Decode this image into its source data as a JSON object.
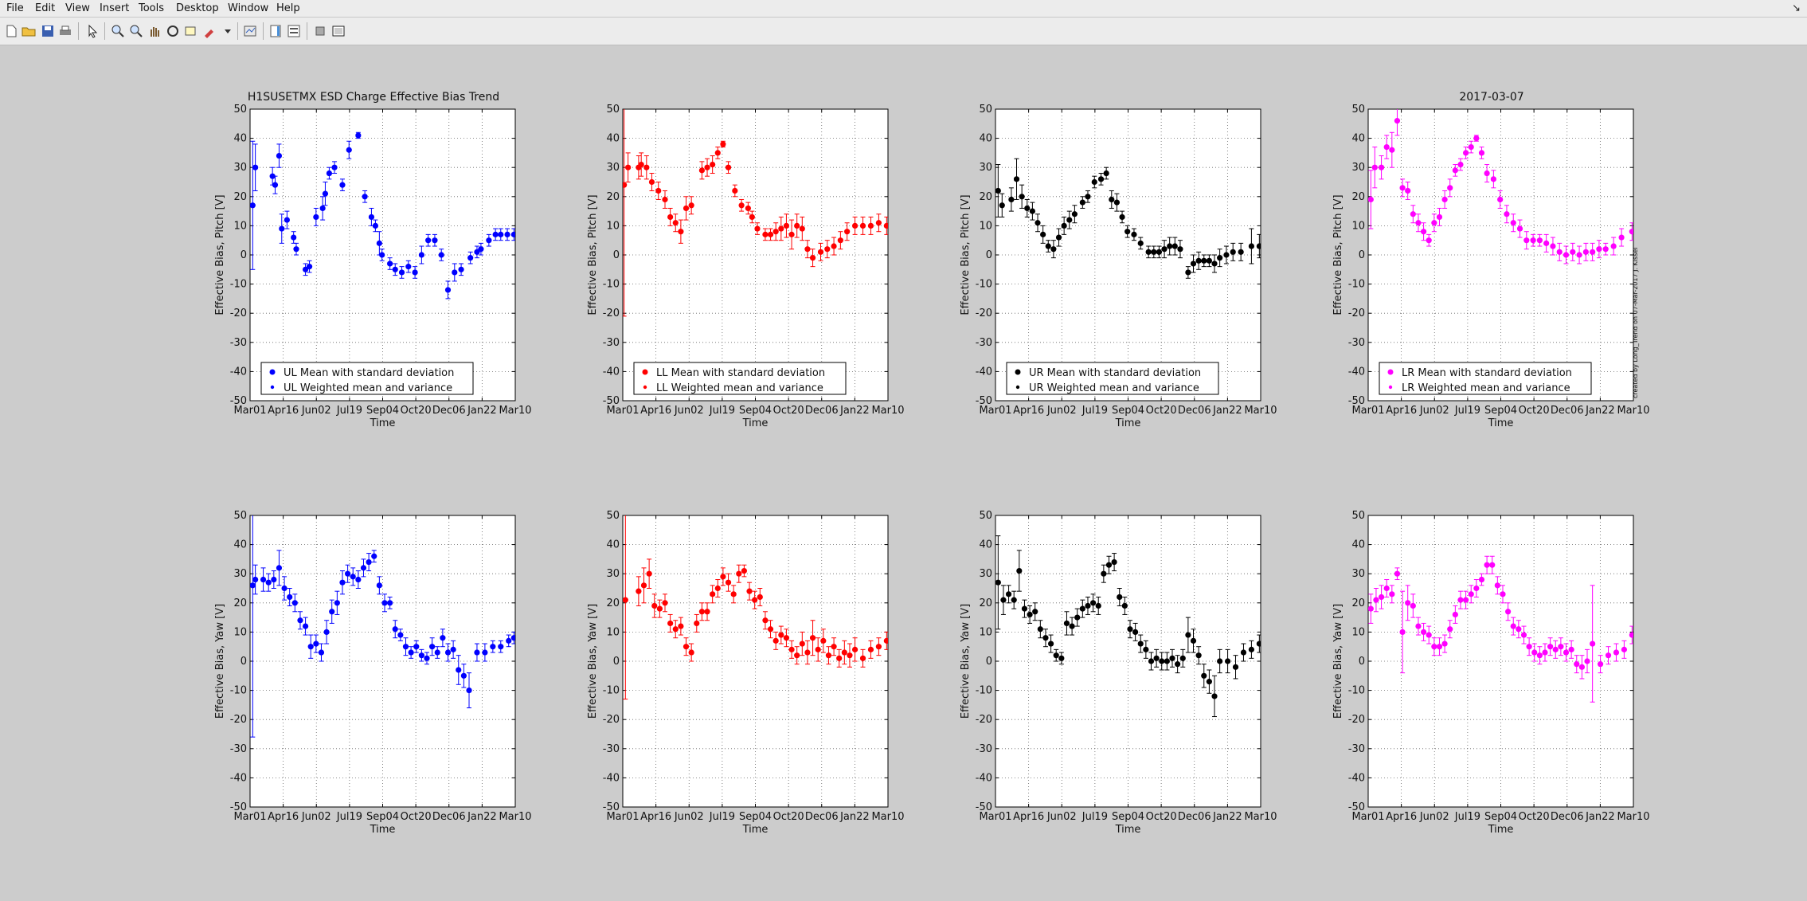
{
  "menu": [
    "File",
    "Edit",
    "View",
    "Insert",
    "Tools",
    "Desktop",
    "Window",
    "Help"
  ],
  "toolbar_icons": [
    "new-file-icon",
    "open-folder-icon",
    "save-icon",
    "print-icon",
    "pointer-icon",
    "zoom-in-icon",
    "zoom-out-icon",
    "pan-icon",
    "rotate-icon",
    "data-cursor-icon",
    "brush-icon",
    "dropdown-icon",
    "link-plot-icon",
    "colorbar-icon",
    "legend-icon",
    "hide-plot-tools-icon",
    "show-plot-tools-icon"
  ],
  "figure": {
    "title_left": "H1SUSETMX ESD Charge Effective Bias Trend",
    "title_right": "2017-03-07",
    "credit": "created by Long_Trend on 07-Mar-2017 J. Kissel"
  },
  "chart_data": [
    {
      "type": "scatter",
      "row": "pitch",
      "quadrant": "UL",
      "color": "#0000ff",
      "ylabel": "Effective Bias, Pitch [V]",
      "xlabel": "Time",
      "ylim": [
        -50,
        50
      ],
      "yticks": [
        "50",
        "40",
        "30",
        "20",
        "10",
        "0",
        "-10",
        "-20",
        "-30",
        "-40",
        "-50"
      ],
      "xticks": [
        "Mar01",
        "Apr16",
        "Jun02",
        "Jul19",
        "Sep04",
        "Oct20",
        "Dec06",
        "Jan22",
        "Mar10"
      ],
      "grid": true,
      "legend": [
        "UL Mean with standard deviation",
        "UL Weighted mean and variance"
      ],
      "legend_position": "bottom-left",
      "x": [
        2,
        4,
        17,
        19,
        22,
        24,
        28,
        33,
        35,
        42,
        45,
        50,
        55,
        57,
        60,
        64,
        70,
        75,
        82,
        87,
        92,
        95,
        98,
        100,
        106,
        110,
        115,
        120,
        125,
        130,
        135,
        140,
        145,
        150,
        155,
        160,
        167,
        172,
        175,
        181,
        186,
        190,
        195,
        200
      ],
      "y": [
        17,
        30,
        27,
        24,
        34,
        9,
        12,
        6,
        2,
        -5,
        -4,
        13,
        16,
        21,
        28,
        30,
        24,
        36,
        41,
        20,
        13,
        10,
        4,
        0,
        -3,
        -5,
        -6,
        -4,
        -6,
        0,
        5,
        5,
        0,
        -12,
        -6,
        -5,
        -1,
        1,
        2,
        5,
        7,
        7,
        7,
        7
      ],
      "err": [
        22,
        8,
        3,
        3,
        4,
        5,
        3,
        2,
        2,
        2,
        2,
        3,
        4,
        4,
        2,
        2,
        2,
        3,
        1,
        2,
        3,
        2,
        4,
        2,
        2,
        2,
        2,
        2,
        2,
        3,
        2,
        2,
        2,
        3,
        3,
        2,
        2,
        2,
        2,
        2,
        2,
        2,
        2,
        2
      ]
    },
    {
      "type": "scatter",
      "row": "pitch",
      "quadrant": "LL",
      "color": "#ff0000",
      "ylabel": "Effective Bias, Pitch [V]",
      "xlabel": "Time",
      "ylim": [
        -50,
        50
      ],
      "yticks": [
        "50",
        "40",
        "30",
        "20",
        "10",
        "0",
        "-10",
        "-20",
        "-30",
        "-40",
        "-50"
      ],
      "xticks": [
        "Mar01",
        "Apr16",
        "Jun02",
        "Jul19",
        "Sep04",
        "Oct20",
        "Dec06",
        "Jan22",
        "Mar10"
      ],
      "grid": true,
      "legend": [
        "LL Mean with standard deviation",
        "LL Weighted mean and variance"
      ],
      "legend_position": "bottom-left",
      "x": [
        1,
        4,
        12,
        14,
        18,
        22,
        27,
        32,
        36,
        40,
        44,
        48,
        52,
        60,
        64,
        68,
        72,
        76,
        80,
        85,
        90,
        95,
        98,
        102,
        108,
        112,
        116,
        120,
        124,
        128,
        132,
        136,
        140,
        144,
        150,
        155,
        160,
        165,
        170,
        176,
        182,
        188,
        194,
        200
      ],
      "y": [
        24,
        30,
        30,
        31,
        30,
        25,
        22,
        19,
        13,
        11,
        8,
        16,
        17,
        29,
        30,
        31,
        35,
        38,
        30,
        22,
        17,
        16,
        13,
        9,
        7,
        7,
        8,
        9,
        10,
        7,
        10,
        9,
        2,
        -1,
        1,
        2,
        3,
        5,
        8,
        10,
        10,
        10,
        11,
        10
      ],
      "err": [
        45,
        5,
        4,
        4,
        4,
        3,
        3,
        3,
        3,
        3,
        4,
        4,
        3,
        3,
        3,
        3,
        2,
        1,
        2,
        2,
        2,
        2,
        2,
        2,
        2,
        2,
        3,
        4,
        4,
        5,
        4,
        4,
        3,
        3,
        3,
        3,
        3,
        3,
        3,
        3,
        3,
        3,
        3,
        3
      ]
    },
    {
      "type": "scatter",
      "row": "pitch",
      "quadrant": "UR",
      "color": "#000000",
      "ylabel": "Effective Bias, Pitch [V]",
      "xlabel": "Time",
      "ylim": [
        -50,
        50
      ],
      "yticks": [
        "50",
        "40",
        "30",
        "20",
        "10",
        "0",
        "-10",
        "-20",
        "-30",
        "-40",
        "-50"
      ],
      "xticks": [
        "Mar01",
        "Apr16",
        "Jun02",
        "Jul19",
        "Sep04",
        "Oct20",
        "Dec06",
        "Jan22",
        "Mar10"
      ],
      "grid": true,
      "legend": [
        "UR Mean with standard deviation",
        "UR Weighted mean and variance"
      ],
      "legend_position": "bottom-left",
      "x": [
        2,
        5,
        12,
        16,
        20,
        24,
        28,
        32,
        36,
        40,
        44,
        48,
        52,
        56,
        60,
        66,
        70,
        75,
        80,
        84,
        88,
        92,
        96,
        100,
        105,
        110,
        116,
        120,
        124,
        128,
        132,
        136,
        140,
        146,
        150,
        154,
        158,
        162,
        166,
        170,
        175,
        180,
        186,
        194,
        200
      ],
      "y": [
        22,
        17,
        19,
        26,
        20,
        16,
        15,
        11,
        7,
        3,
        2,
        6,
        10,
        12,
        14,
        18,
        20,
        25,
        26,
        28,
        19,
        18,
        13,
        8,
        7,
        4,
        1,
        1,
        1,
        2,
        3,
        3,
        2,
        -6,
        -3,
        -2,
        -2,
        -2,
        -3,
        -1,
        0,
        1,
        1,
        3,
        3
      ],
      "err": [
        9,
        4,
        4,
        7,
        4,
        3,
        3,
        3,
        3,
        2,
        3,
        3,
        3,
        3,
        3,
        2,
        2,
        2,
        2,
        2,
        3,
        3,
        2,
        2,
        2,
        2,
        2,
        2,
        2,
        3,
        3,
        3,
        3,
        2,
        3,
        3,
        2,
        2,
        3,
        3,
        3,
        3,
        3,
        6,
        4
      ]
    },
    {
      "type": "scatter",
      "row": "pitch",
      "quadrant": "LR",
      "color": "#ff00ff",
      "ylabel": "Effective Bias, Pitch [V]",
      "xlabel": "Time",
      "ylim": [
        -50,
        50
      ],
      "yticks": [
        "50",
        "40",
        "30",
        "20",
        "10",
        "0",
        "-10",
        "-20",
        "-30",
        "-40",
        "-50"
      ],
      "xticks": [
        "Mar01",
        "Apr16",
        "Jun02",
        "Jul19",
        "Sep04",
        "Oct20",
        "Dec06",
        "Jan22",
        "Mar10"
      ],
      "grid": true,
      "legend": [
        "LR Mean with standard deviation",
        "LR Weighted mean and variance"
      ],
      "legend_position": "bottom-left",
      "x": [
        2,
        5,
        10,
        14,
        18,
        22,
        26,
        30,
        34,
        38,
        42,
        46,
        50,
        54,
        58,
        62,
        66,
        70,
        74,
        78,
        82,
        86,
        90,
        95,
        100,
        105,
        110,
        115,
        120,
        125,
        130,
        135,
        140,
        145,
        150,
        155,
        160,
        165,
        170,
        175,
        180,
        186,
        192,
        200
      ],
      "y": [
        19,
        30,
        30,
        37,
        36,
        46,
        23,
        22,
        14,
        11,
        8,
        5,
        11,
        13,
        19,
        23,
        29,
        31,
        35,
        37,
        40,
        35,
        28,
        26,
        19,
        14,
        11,
        9,
        5,
        5,
        5,
        4,
        3,
        1,
        0,
        1,
        0,
        1,
        1,
        2,
        2,
        3,
        6,
        8
      ],
      "err": [
        10,
        7,
        4,
        4,
        6,
        5,
        3,
        3,
        3,
        3,
        3,
        2,
        3,
        3,
        3,
        3,
        2,
        2,
        2,
        2,
        1,
        2,
        3,
        3,
        3,
        3,
        3,
        3,
        3,
        2,
        2,
        3,
        3,
        3,
        3,
        3,
        3,
        3,
        3,
        3,
        2,
        3,
        3,
        3
      ]
    },
    {
      "type": "scatter",
      "row": "yaw",
      "quadrant": "UL",
      "color": "#0000ff",
      "ylabel": "Effective Bias, Yaw [V]",
      "xlabel": "Time",
      "ylim": [
        -50,
        50
      ],
      "yticks": [
        "50",
        "40",
        "30",
        "20",
        "10",
        "0",
        "-10",
        "-20",
        "-30",
        "-40",
        "-50"
      ],
      "xticks": [
        "Mar01",
        "Apr16",
        "Jun02",
        "Jul19",
        "Sep04",
        "Oct20",
        "Dec06",
        "Jan22",
        "Mar10"
      ],
      "grid": true,
      "legend": [],
      "x": [
        2,
        4,
        10,
        14,
        18,
        22,
        26,
        30,
        34,
        38,
        42,
        46,
        50,
        54,
        58,
        62,
        66,
        70,
        74,
        78,
        82,
        86,
        90,
        94,
        98,
        102,
        106,
        110,
        114,
        118,
        122,
        126,
        130,
        134,
        138,
        142,
        146,
        150,
        154,
        158,
        162,
        166,
        172,
        178,
        184,
        190,
        196,
        200
      ],
      "y": [
        26,
        28,
        28,
        27,
        28,
        32,
        25,
        22,
        20,
        14,
        12,
        5,
        6,
        3,
        10,
        17,
        20,
        27,
        30,
        29,
        28,
        32,
        34,
        36,
        26,
        20,
        20,
        11,
        9,
        5,
        3,
        5,
        2,
        1,
        5,
        3,
        8,
        3,
        4,
        -3,
        -5,
        -10,
        3,
        3,
        5,
        5,
        7,
        8
      ],
      "err": [
        52,
        5,
        4,
        3,
        3,
        6,
        4,
        3,
        3,
        3,
        3,
        4,
        3,
        3,
        4,
        4,
        4,
        4,
        3,
        3,
        3,
        3,
        3,
        2,
        3,
        3,
        2,
        3,
        2,
        3,
        2,
        2,
        2,
        2,
        3,
        2,
        3,
        3,
        3,
        5,
        4,
        6,
        3,
        3,
        2,
        2,
        2,
        2
      ]
    },
    {
      "type": "scatter",
      "row": "yaw",
      "quadrant": "LL",
      "color": "#ff0000",
      "ylabel": "Effective Bias, Yaw [V]",
      "xlabel": "Time",
      "ylim": [
        -50,
        50
      ],
      "yticks": [
        "50",
        "40",
        "30",
        "20",
        "10",
        "0",
        "-10",
        "-20",
        "-30",
        "-40",
        "-50"
      ],
      "xticks": [
        "Mar01",
        "Apr16",
        "Jun02",
        "Jul19",
        "Sep04",
        "Oct20",
        "Dec06",
        "Jan22",
        "Mar10"
      ],
      "grid": true,
      "legend": [],
      "x": [
        2,
        12,
        16,
        20,
        24,
        28,
        32,
        36,
        40,
        44,
        48,
        52,
        56,
        60,
        64,
        68,
        72,
        76,
        80,
        84,
        88,
        92,
        96,
        100,
        104,
        108,
        112,
        116,
        120,
        124,
        128,
        132,
        136,
        140,
        144,
        148,
        152,
        156,
        160,
        164,
        168,
        172,
        176,
        182,
        188,
        194,
        200
      ],
      "y": [
        21,
        24,
        26,
        30,
        19,
        18,
        20,
        13,
        11,
        12,
        5,
        3,
        13,
        17,
        17,
        23,
        25,
        29,
        27,
        23,
        30,
        31,
        24,
        21,
        22,
        14,
        11,
        7,
        9,
        8,
        4,
        2,
        6,
        3,
        8,
        4,
        7,
        2,
        5,
        1,
        3,
        2,
        4,
        1,
        4,
        5,
        7
      ],
      "err": [
        34,
        5,
        6,
        5,
        4,
        3,
        3,
        3,
        3,
        3,
        3,
        3,
        3,
        3,
        3,
        3,
        3,
        3,
        3,
        3,
        3,
        2,
        3,
        3,
        3,
        3,
        3,
        3,
        3,
        3,
        3,
        3,
        4,
        4,
        6,
        4,
        4,
        3,
        3,
        3,
        4,
        4,
        4,
        3,
        3,
        3,
        3
      ]
    },
    {
      "type": "scatter",
      "row": "yaw",
      "quadrant": "UR",
      "color": "#000000",
      "ylabel": "Effective Bias, Yaw [V]",
      "xlabel": "Time",
      "ylim": [
        -50,
        50
      ],
      "yticks": [
        "50",
        "40",
        "30",
        "20",
        "10",
        "0",
        "-10",
        "-20",
        "-30",
        "-40",
        "-50"
      ],
      "xticks": [
        "Mar01",
        "Apr16",
        "Jun02",
        "Jul19",
        "Sep04",
        "Oct20",
        "Dec06",
        "Jan22",
        "Mar10"
      ],
      "grid": true,
      "legend": [],
      "x": [
        2,
        6,
        10,
        14,
        18,
        22,
        26,
        30,
        34,
        38,
        42,
        46,
        50,
        54,
        58,
        62,
        66,
        70,
        74,
        78,
        82,
        86,
        90,
        94,
        98,
        102,
        106,
        110,
        114,
        118,
        122,
        126,
        130,
        134,
        138,
        142,
        146,
        150,
        154,
        158,
        162,
        166,
        170,
        176,
        182,
        188,
        194,
        200
      ],
      "y": [
        27,
        21,
        23,
        21,
        31,
        18,
        16,
        17,
        11,
        8,
        6,
        2,
        1,
        13,
        12,
        15,
        18,
        19,
        20,
        19,
        30,
        33,
        34,
        22,
        19,
        11,
        10,
        6,
        4,
        0,
        1,
        0,
        0,
        1,
        -1,
        1,
        9,
        7,
        2,
        -5,
        -7,
        -12,
        0,
        0,
        -2,
        3,
        4,
        6
      ],
      "err": [
        16,
        5,
        3,
        3,
        7,
        3,
        3,
        3,
        3,
        3,
        3,
        2,
        2,
        4,
        3,
        3,
        3,
        3,
        3,
        3,
        3,
        3,
        3,
        3,
        3,
        3,
        3,
        3,
        3,
        3,
        3,
        3,
        3,
        3,
        3,
        3,
        6,
        4,
        3,
        4,
        4,
        7,
        4,
        4,
        4,
        3,
        3,
        3
      ]
    },
    {
      "type": "scatter",
      "row": "yaw",
      "quadrant": "LR",
      "color": "#ff00ff",
      "ylabel": "Effective Bias, Yaw [V]",
      "xlabel": "Time",
      "ylim": [
        -50,
        50
      ],
      "yticks": [
        "50",
        "40",
        "30",
        "20",
        "10",
        "0",
        "-10",
        "-20",
        "-30",
        "-40",
        "-50"
      ],
      "xticks": [
        "Mar01",
        "Apr16",
        "Jun02",
        "Jul19",
        "Sep04",
        "Oct20",
        "Dec06",
        "Jan22",
        "Mar10"
      ],
      "grid": true,
      "legend": [],
      "x": [
        2,
        6,
        10,
        14,
        18,
        22,
        26,
        30,
        34,
        38,
        42,
        46,
        50,
        54,
        58,
        62,
        66,
        70,
        74,
        78,
        82,
        86,
        90,
        94,
        98,
        102,
        106,
        110,
        114,
        118,
        122,
        126,
        130,
        134,
        138,
        142,
        146,
        150,
        154,
        158,
        162,
        166,
        170,
        176,
        182,
        188,
        194,
        200
      ],
      "y": [
        18,
        21,
        22,
        25,
        23,
        30,
        10,
        20,
        19,
        12,
        10,
        9,
        5,
        5,
        6,
        11,
        16,
        21,
        21,
        23,
        25,
        28,
        33,
        33,
        26,
        23,
        17,
        12,
        11,
        9,
        5,
        3,
        2,
        3,
        5,
        4,
        5,
        3,
        4,
        -1,
        -2,
        0,
        6,
        -1,
        2,
        3,
        4,
        9
      ],
      "err": [
        5,
        4,
        4,
        3,
        3,
        2,
        14,
        6,
        4,
        3,
        3,
        3,
        3,
        3,
        3,
        3,
        3,
        3,
        3,
        3,
        3,
        2,
        3,
        3,
        3,
        3,
        3,
        3,
        3,
        3,
        3,
        3,
        3,
        3,
        3,
        3,
        3,
        3,
        3,
        3,
        4,
        4,
        20,
        3,
        3,
        3,
        3,
        3
      ]
    }
  ]
}
